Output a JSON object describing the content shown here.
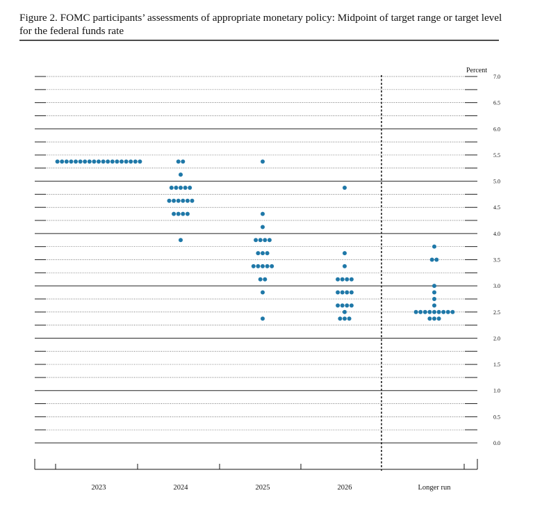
{
  "chart_data": {
    "type": "dot",
    "title": "Figure 2.  FOMC participants’ assessments of appropriate monetary policy:  Midpoint of target range or target level for the federal funds rate",
    "y_label": "Percent",
    "color": "#1f78a8",
    "ylim": [
      0,
      7
    ],
    "yticks": [
      {
        "value": 0,
        "label": "0.0"
      },
      0.5,
      {
        "value": 1,
        "label": "1.0"
      },
      1.5,
      {
        "value": 2,
        "label": "2.0"
      },
      2.5,
      {
        "value": 3,
        "label": "3.0"
      },
      3.5,
      {
        "value": 4,
        "label": "4.0"
      },
      4.5,
      {
        "value": 5,
        "label": "5.0"
      },
      5.5,
      {
        "value": 6,
        "label": "6.0"
      },
      6.5,
      {
        "value": 7,
        "label": "7.0"
      }
    ],
    "minor_yticks": [
      0.25,
      0.75,
      1.25,
      1.75,
      2.25,
      2.75,
      3.25,
      3.75,
      4.25,
      4.75,
      5.25,
      5.75,
      6.25,
      6.75
    ],
    "categories": [
      "2023",
      "2024",
      "2025",
      "2026",
      "Longer run"
    ],
    "groups": [
      {
        "levels": [
          {
            "rate": 5.375,
            "count": 19
          }
        ]
      },
      {
        "levels": [
          {
            "rate": 5.375,
            "count": 2
          },
          {
            "rate": 5.125,
            "count": 1
          },
          {
            "rate": 4.875,
            "count": 5
          },
          {
            "rate": 4.625,
            "count": 6
          },
          {
            "rate": 4.375,
            "count": 4
          },
          {
            "rate": 3.875,
            "count": 1
          }
        ]
      },
      {
        "levels": [
          {
            "rate": 5.375,
            "count": 1
          },
          {
            "rate": 4.375,
            "count": 1
          },
          {
            "rate": 4.125,
            "count": 1
          },
          {
            "rate": 3.875,
            "count": 4
          },
          {
            "rate": 3.625,
            "count": 3
          },
          {
            "rate": 3.375,
            "count": 5
          },
          {
            "rate": 3.125,
            "count": 2
          },
          {
            "rate": 2.875,
            "count": 1
          },
          {
            "rate": 2.375,
            "count": 1
          }
        ]
      },
      {
        "levels": [
          {
            "rate": 4.875,
            "count": 1
          },
          {
            "rate": 3.625,
            "count": 1
          },
          {
            "rate": 3.375,
            "count": 1
          },
          {
            "rate": 3.125,
            "count": 4
          },
          {
            "rate": 2.875,
            "count": 4
          },
          {
            "rate": 2.625,
            "count": 4
          },
          {
            "rate": 2.5,
            "count": 1
          },
          {
            "rate": 2.375,
            "count": 3
          }
        ]
      },
      {
        "levels": [
          {
            "rate": 3.75,
            "count": 1
          },
          {
            "rate": 3.5,
            "count": 2
          },
          {
            "rate": 3.0,
            "count": 1
          },
          {
            "rate": 2.875,
            "count": 1
          },
          {
            "rate": 2.75,
            "count": 1
          },
          {
            "rate": 2.625,
            "count": 1
          },
          {
            "rate": 2.5,
            "count": 9
          },
          {
            "rate": 2.375,
            "count": 3
          }
        ]
      }
    ]
  }
}
